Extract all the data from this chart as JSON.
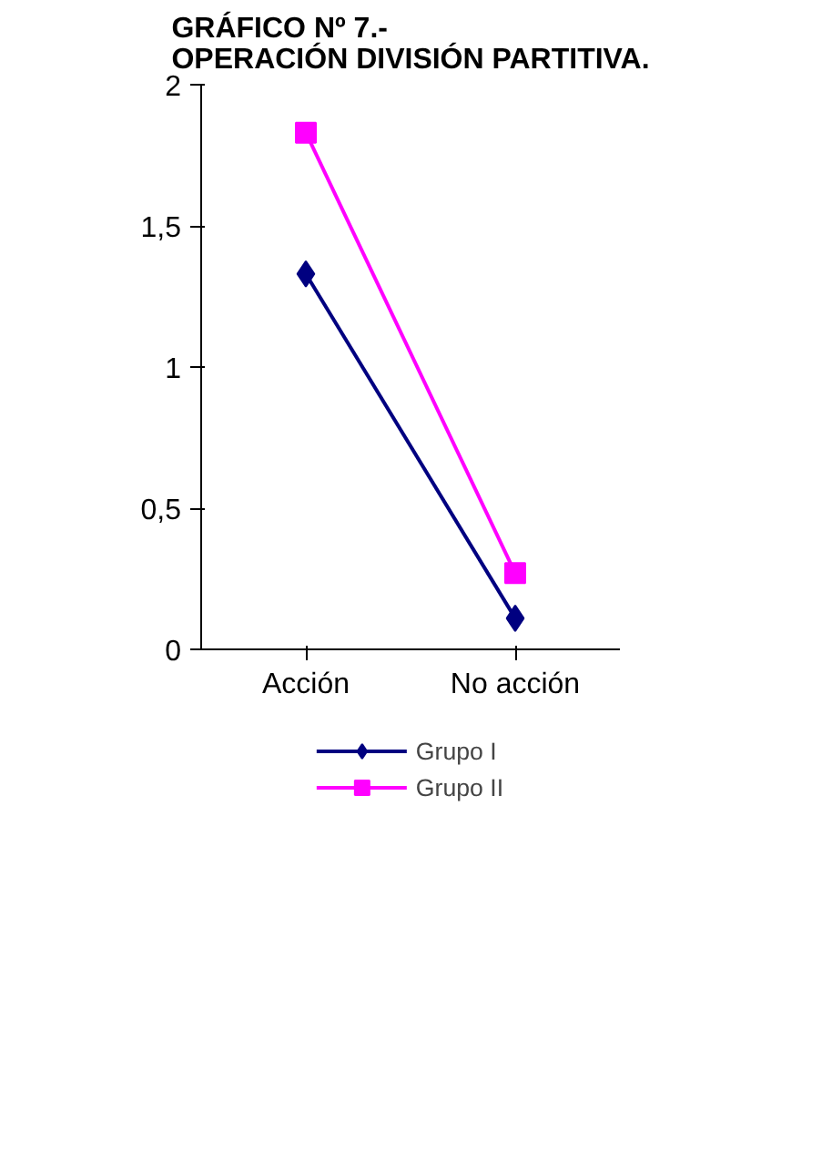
{
  "chart_data": {
    "type": "line",
    "title": "GRÁFICO Nº 7.-\nOPERACIÓN DIVISIÓN PARTITIVA.",
    "categories": [
      "Acción",
      "No acción"
    ],
    "series": [
      {
        "name": "Grupo I",
        "color": "#000080",
        "values": [
          1.33,
          0.11
        ],
        "marker": "diamond"
      },
      {
        "name": "Grupo II",
        "color": "#ff00ff",
        "values": [
          1.83,
          0.27
        ],
        "marker": "square"
      }
    ],
    "ylim": [
      0,
      2
    ],
    "yticks": [
      0,
      {
        "value": 0.5,
        "label": "0,5"
      },
      1,
      {
        "value": 1.5,
        "label": "1,5"
      },
      2
    ],
    "grid": false,
    "legend": "bottom"
  }
}
